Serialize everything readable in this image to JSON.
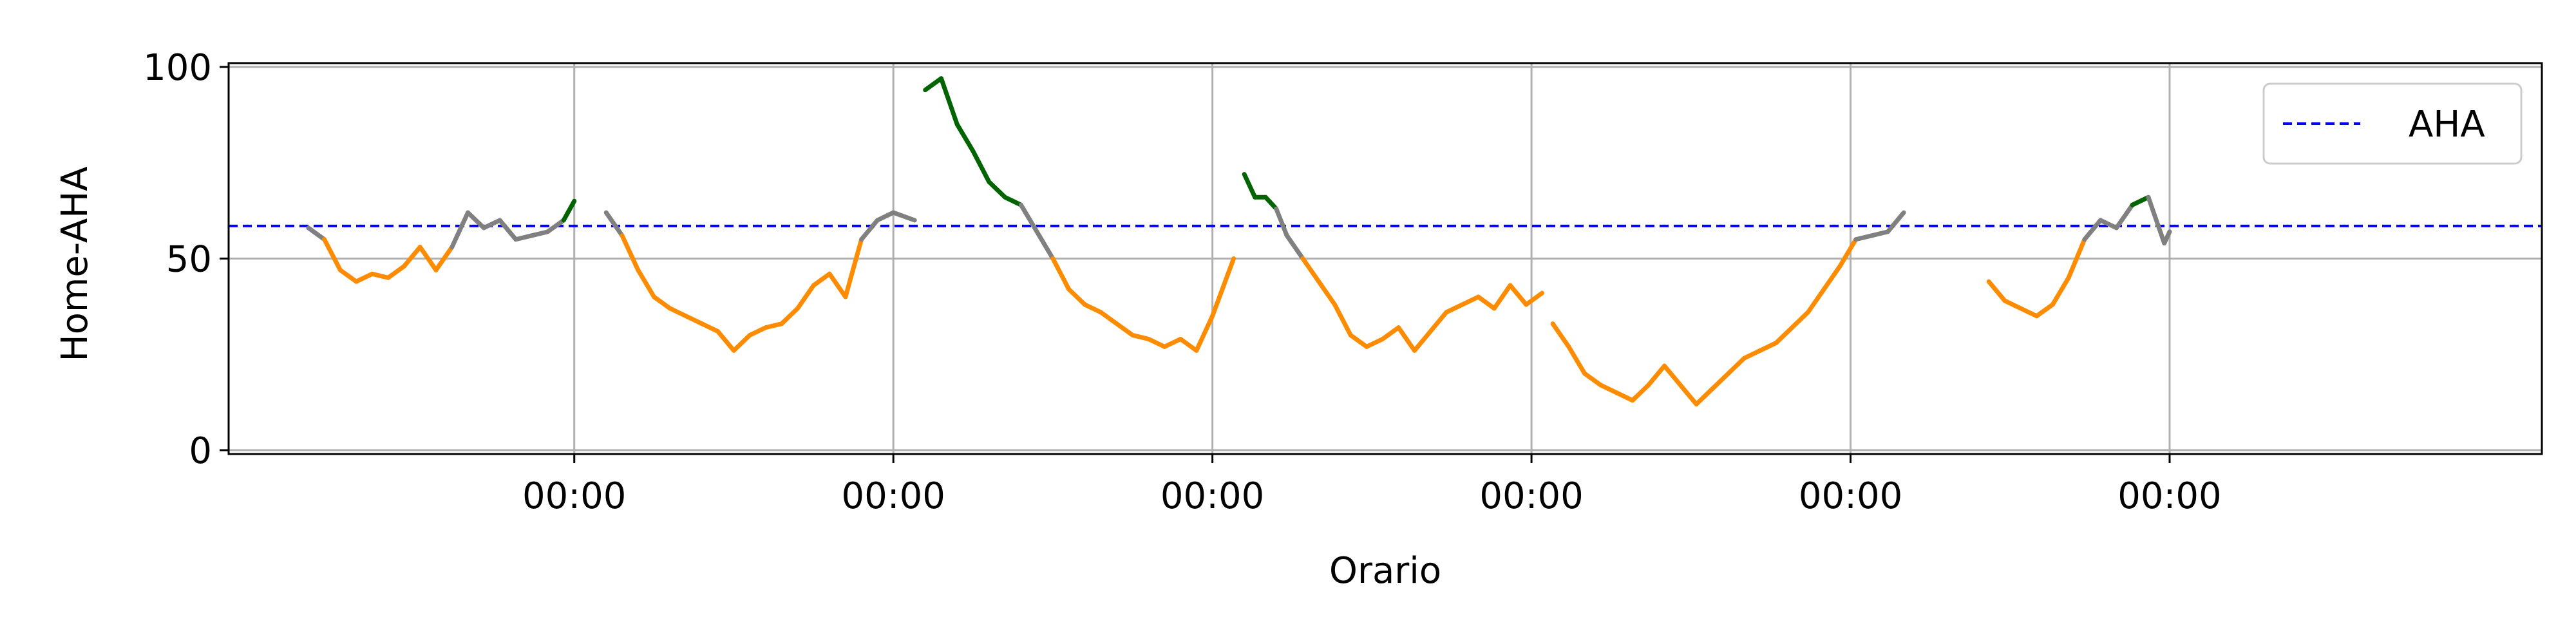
{
  "chart_data": {
    "type": "line",
    "title": "",
    "xlabel": "Orario",
    "ylabel": "Home-AHA",
    "x_unit": "hours",
    "xlim": [
      -36.5,
      7.0
    ],
    "ylim": [
      -1,
      101
    ],
    "x_ticks": [
      {
        "x": -30,
        "label": "00:00"
      },
      {
        "x": -24,
        "label": "00:00"
      },
      {
        "x": -18,
        "label": "00:00"
      },
      {
        "x": -12,
        "label": "00:00"
      },
      {
        "x": -6,
        "label": "00:00"
      },
      {
        "x": 0,
        "label": "00:00"
      }
    ],
    "y_ticks": [
      0,
      50,
      100
    ],
    "grid": true,
    "reference_line": {
      "name": "AHA",
      "y": 58.5,
      "color": "#0000ff",
      "style": "dashed"
    },
    "legend": {
      "position": "top-right",
      "entries": [
        "AHA"
      ]
    },
    "colors": {
      "green": "#006400",
      "gray": "#808080",
      "orange": "#ff8c00"
    },
    "segments": [
      {
        "x": [
          -35.0,
          -34.7,
          -34.4,
          -34.1,
          -33.8,
          -33.5,
          -33.2,
          -32.9,
          -32.6,
          -32.3,
          -32.0,
          -31.7,
          -31.4,
          -31.1,
          -30.8,
          -30.5,
          -30.2,
          -30.0
        ],
        "y": [
          58,
          55,
          47,
          44,
          46,
          45,
          48,
          53,
          47,
          53,
          62,
          58,
          60,
          55,
          56,
          57,
          60,
          65
        ]
      },
      {
        "x": [
          -29.4,
          -29.1,
          -28.8,
          -28.5,
          -28.2,
          -27.9,
          -27.6,
          -27.3,
          -27.0,
          -26.7,
          -26.4,
          -26.1,
          -25.8,
          -25.5,
          -25.2,
          -24.9,
          -24.6,
          -24.3,
          -24.0,
          -23.6
        ],
        "y": [
          62,
          56,
          47,
          40,
          37,
          35,
          33,
          31,
          26,
          30,
          32,
          33,
          37,
          43,
          46,
          40,
          55,
          60,
          62,
          60
        ]
      },
      {
        "x": [
          -23.4,
          -23.1,
          -22.8,
          -22.5,
          -22.2,
          -21.9,
          -21.6,
          -21.3,
          -21.0,
          -20.7,
          -20.4,
          -20.1,
          -19.8,
          -19.5,
          -19.2,
          -18.9,
          -18.6,
          -18.3,
          -18.0,
          -17.6
        ],
        "y": [
          94,
          97,
          85,
          78,
          70,
          66,
          64,
          57,
          50,
          42,
          38,
          36,
          33,
          30,
          29,
          27,
          29,
          26,
          35,
          50
        ]
      },
      {
        "x": [
          -17.4,
          -17.2,
          -17.0,
          -16.8,
          -16.6,
          -16.3,
          -16.0,
          -15.7,
          -15.4,
          -15.1,
          -14.8,
          -14.5,
          -14.2,
          -13.9,
          -13.6,
          -13.3,
          -13.0,
          -12.7,
          -12.4,
          -12.1,
          -11.8
        ],
        "y": [
          72,
          66,
          66,
          63,
          56,
          50,
          44,
          38,
          30,
          27,
          29,
          32,
          26,
          31,
          36,
          38,
          40,
          37,
          43,
          38,
          41
        ]
      },
      {
        "x": [
          -11.6,
          -11.3,
          -11.0,
          -10.7,
          -10.4,
          -10.1,
          -9.8,
          -9.5,
          -9.2,
          -8.9,
          -8.6,
          -8.3,
          -8.0,
          -7.7,
          -7.4,
          -7.1,
          -6.8,
          -6.5,
          -6.2,
          -5.9,
          -5.6,
          -5.3,
          -5.0
        ],
        "y": [
          33,
          27,
          20,
          17,
          15,
          13,
          17,
          22,
          17,
          12,
          16,
          20,
          24,
          26,
          28,
          32,
          36,
          42,
          48,
          55,
          56,
          57,
          62
        ]
      },
      {
        "x": [
          -3.4,
          -3.1,
          -2.8,
          -2.5,
          -2.2,
          -1.9,
          -1.6,
          -1.3,
          -1.0,
          -0.7,
          -0.4,
          -0.1,
          0.0
        ],
        "y": [
          44,
          39,
          37,
          35,
          38,
          45,
          55,
          60,
          58,
          64,
          66,
          54,
          57
        ]
      }
    ]
  }
}
